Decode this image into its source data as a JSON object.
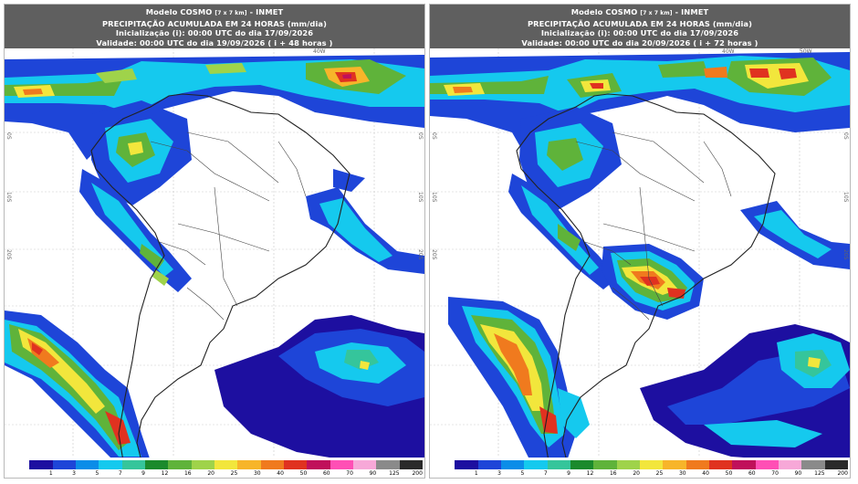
{
  "panels": [
    {
      "line1": "Modelo COSMO",
      "line1_small": "[7 x 7 km]",
      "line1_suffix": "- INMET",
      "line2": "PRECIPITAÇÃO ACUMULADA EM 24 HORAS (mm/dia)",
      "line3": "Inicialização (i): 00:00 UTC do dia 17/09/2026",
      "line4": "Validade: 00:00 UTC do dia 19/09/2026 ( i + 48 horas )"
    },
    {
      "line1": "Modelo COSMO",
      "line1_small": "[7 x 7 km]",
      "line1_suffix": "- INMET",
      "line2": "PRECIPITAÇÃO ACUMULADA EM 24 HORAS (mm/dia)",
      "line3": "Inicialização (i): 00:00 UTC do dia 17/09/2026",
      "line4": "Validade: 00:00 UTC do dia 20/09/2026 ( i + 72 horas )"
    }
  ],
  "latitude_labels": [
    "0S",
    "10S",
    "20S"
  ],
  "longitude_labels": [
    "40W",
    "50W"
  ],
  "legend": {
    "ticks": [
      "1",
      "3",
      "5",
      "7",
      "9",
      "12",
      "16",
      "20",
      "25",
      "30",
      "40",
      "50",
      "60",
      "70",
      "90",
      "125",
      "200"
    ],
    "colors": [
      "#ffffff",
      "#1d0fa0",
      "#1e45d8",
      "#0b8de8",
      "#15c9ee",
      "#35c59b",
      "#1b8a2c",
      "#5fb33a",
      "#9fd34a",
      "#f2e63c",
      "#f7b52a",
      "#f07a1e",
      "#e03220",
      "#c0105a",
      "#ff4fb5",
      "#f7a8d8",
      "#8a8a8a",
      "#2a2a2a"
    ]
  }
}
